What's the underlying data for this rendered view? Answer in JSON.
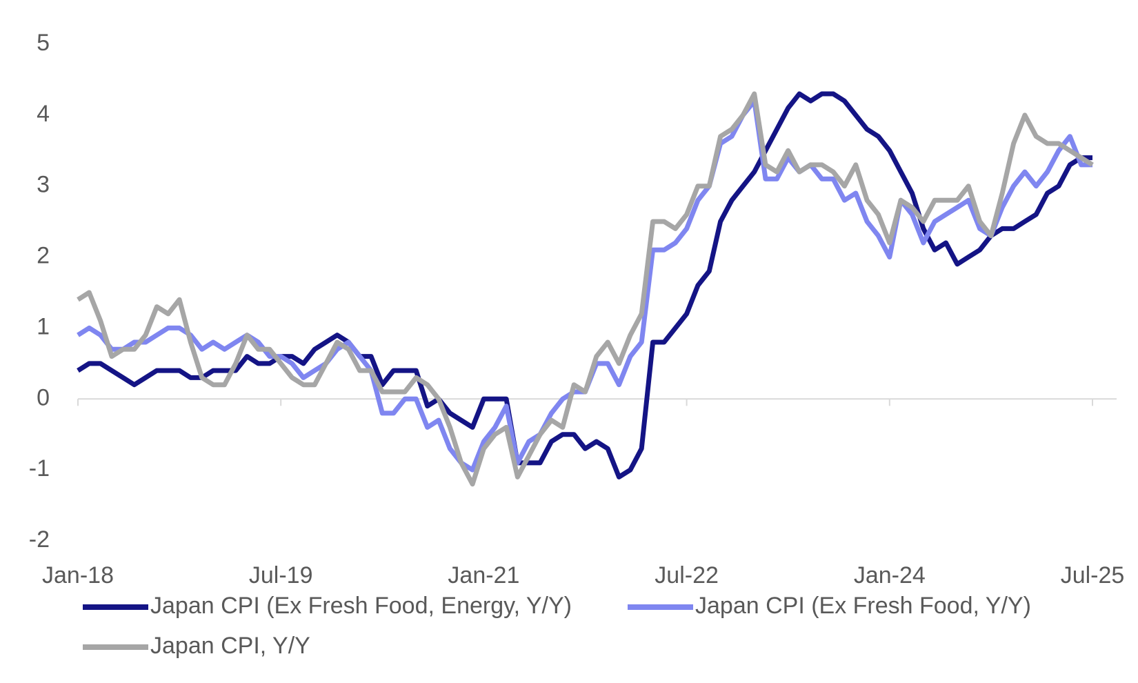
{
  "chart_data": {
    "type": "line",
    "categories": [
      "Jan-18",
      null,
      null,
      null,
      null,
      null,
      null,
      null,
      null,
      null,
      null,
      null,
      null,
      null,
      null,
      null,
      null,
      null,
      "Jul-19",
      null,
      null,
      null,
      null,
      null,
      null,
      null,
      null,
      null,
      null,
      null,
      null,
      null,
      null,
      null,
      null,
      null,
      "Jan-21",
      null,
      null,
      null,
      null,
      null,
      null,
      null,
      null,
      null,
      null,
      null,
      null,
      null,
      null,
      null,
      null,
      null,
      "Jul-22",
      null,
      null,
      null,
      null,
      null,
      null,
      null,
      null,
      null,
      null,
      null,
      null,
      null,
      null,
      null,
      null,
      null,
      "Jan-24",
      null,
      null,
      null,
      null,
      null,
      null,
      null,
      null,
      null,
      null,
      null,
      null,
      null,
      null,
      null,
      null,
      null,
      "Jul-25"
    ],
    "series": [
      {
        "name": "Japan CPI (Ex Fresh Food, Energy, Y/Y)",
        "color": "#141485",
        "values": [
          0.4,
          0.5,
          0.5,
          0.4,
          0.3,
          0.2,
          0.3,
          0.4,
          0.4,
          0.4,
          0.3,
          0.3,
          0.4,
          0.4,
          0.4,
          0.6,
          0.5,
          0.5,
          0.6,
          0.6,
          0.5,
          0.7,
          0.8,
          0.9,
          0.8,
          0.6,
          0.6,
          0.2,
          0.4,
          0.4,
          0.4,
          -0.1,
          0.0,
          -0.2,
          -0.3,
          -0.4,
          0.0,
          0.0,
          0.0,
          -0.9,
          -0.9,
          -0.9,
          -0.6,
          -0.5,
          -0.5,
          -0.7,
          -0.6,
          -0.7,
          -1.1,
          -1.0,
          -0.7,
          0.8,
          0.8,
          1.0,
          1.2,
          1.6,
          1.8,
          2.5,
          2.8,
          3.0,
          3.2,
          3.5,
          3.8,
          4.1,
          4.3,
          4.2,
          4.3,
          4.3,
          4.2,
          4.0,
          3.8,
          3.7,
          3.5,
          3.2,
          2.9,
          2.4,
          2.1,
          2.2,
          1.9,
          2.0,
          2.1,
          2.3,
          2.4,
          2.4,
          2.5,
          2.6,
          2.9,
          3.0,
          3.3,
          3.4,
          3.4
        ]
      },
      {
        "name": "Japan CPI (Ex Fresh Food, Y/Y)",
        "color": "#7f86f0",
        "values": [
          0.9,
          1.0,
          0.9,
          0.7,
          0.7,
          0.8,
          0.8,
          0.9,
          1.0,
          1.0,
          0.9,
          0.7,
          0.8,
          0.7,
          0.8,
          0.9,
          0.8,
          0.6,
          0.6,
          0.5,
          0.3,
          0.4,
          0.5,
          0.7,
          0.8,
          0.6,
          0.4,
          -0.2,
          -0.2,
          0.0,
          0.0,
          -0.4,
          -0.3,
          -0.7,
          -0.9,
          -1.0,
          -0.6,
          -0.4,
          -0.1,
          -0.9,
          -0.6,
          -0.5,
          -0.2,
          0.0,
          0.1,
          0.1,
          0.5,
          0.5,
          0.2,
          0.6,
          0.8,
          2.1,
          2.1,
          2.2,
          2.4,
          2.8,
          3.0,
          3.6,
          3.7,
          4.0,
          4.2,
          3.1,
          3.1,
          3.4,
          3.2,
          3.3,
          3.1,
          3.1,
          2.8,
          2.9,
          2.5,
          2.3,
          2.0,
          2.8,
          2.6,
          2.2,
          2.5,
          2.6,
          2.7,
          2.8,
          2.4,
          2.3,
          2.7,
          3.0,
          3.2,
          3.0,
          3.2,
          3.5,
          3.7,
          3.3,
          3.3
        ]
      },
      {
        "name": "Japan CPI, Y/Y",
        "color": "#a6a6a6",
        "values": [
          1.4,
          1.5,
          1.1,
          0.6,
          0.7,
          0.7,
          0.9,
          1.3,
          1.2,
          1.4,
          0.8,
          0.3,
          0.2,
          0.2,
          0.5,
          0.9,
          0.7,
          0.7,
          0.5,
          0.3,
          0.2,
          0.2,
          0.5,
          0.8,
          0.7,
          0.4,
          0.4,
          0.1,
          0.1,
          0.1,
          0.3,
          0.2,
          0.0,
          -0.4,
          -0.9,
          -1.2,
          -0.7,
          -0.5,
          -0.4,
          -1.1,
          -0.8,
          -0.5,
          -0.3,
          -0.4,
          0.2,
          0.1,
          0.6,
          0.8,
          0.5,
          0.9,
          1.2,
          2.5,
          2.5,
          2.4,
          2.6,
          3.0,
          3.0,
          3.7,
          3.8,
          4.0,
          4.3,
          3.3,
          3.2,
          3.5,
          3.2,
          3.3,
          3.3,
          3.2,
          3.0,
          3.3,
          2.8,
          2.6,
          2.2,
          2.8,
          2.7,
          2.5,
          2.8,
          2.8,
          2.8,
          3.0,
          2.5,
          2.3,
          2.9,
          3.6,
          4.0,
          3.7,
          3.6,
          3.6,
          3.5,
          3.4,
          3.3
        ]
      }
    ],
    "ylim": [
      -2,
      5
    ],
    "yticks": [
      -2,
      -1,
      0,
      1,
      2,
      3,
      4,
      5
    ],
    "grid": false,
    "legend": "bottom"
  }
}
